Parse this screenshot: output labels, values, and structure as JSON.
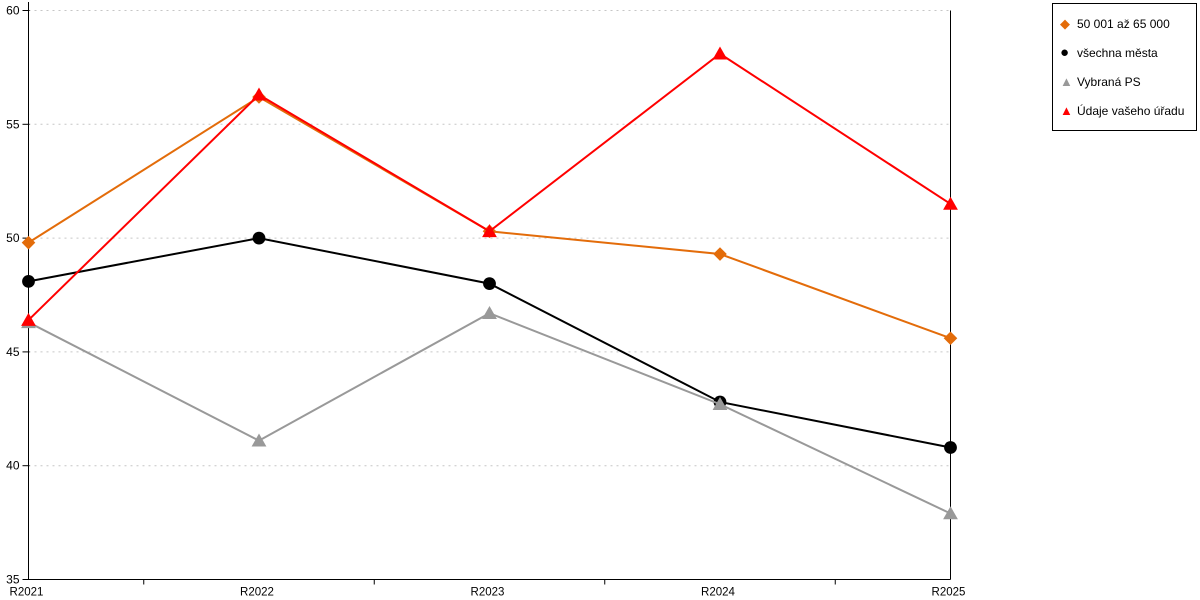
{
  "chart_data": {
    "type": "line",
    "title": "",
    "categories": [
      "R2021",
      "R2022",
      "R2023",
      "R2024",
      "R2025"
    ],
    "series": [
      {
        "name": "50 001 až 65 000",
        "color": "#E36C0A",
        "marker": "diamond",
        "values": [
          49.8,
          56.2,
          50.3,
          49.3,
          45.6
        ]
      },
      {
        "name": "všechna města",
        "color": "#000000",
        "marker": "circle",
        "values": [
          48.1,
          50.0,
          48.0,
          42.8,
          40.8
        ]
      },
      {
        "name": "Vybraná PS",
        "color": "#999999",
        "marker": "triangle",
        "values": [
          46.3,
          41.1,
          46.7,
          42.7,
          37.9
        ]
      },
      {
        "name": "Údaje vašeho úřadu",
        "color": "#FF0000",
        "marker": "triangle",
        "values": [
          46.4,
          56.3,
          50.3,
          58.1,
          51.5
        ]
      }
    ],
    "ylim": [
      35,
      60
    ],
    "ytick_step": 5,
    "y_tick_labels": [
      "35",
      "40",
      "45",
      "50",
      "55",
      "60"
    ],
    "grid": "horizontal-dashed",
    "gridline_color": "#C6C6C6",
    "axis_color": "#000000",
    "legend_position": "top-right"
  },
  "legend": {
    "marker_glyphs": [
      "◆",
      "●",
      "▲",
      "▲"
    ]
  }
}
